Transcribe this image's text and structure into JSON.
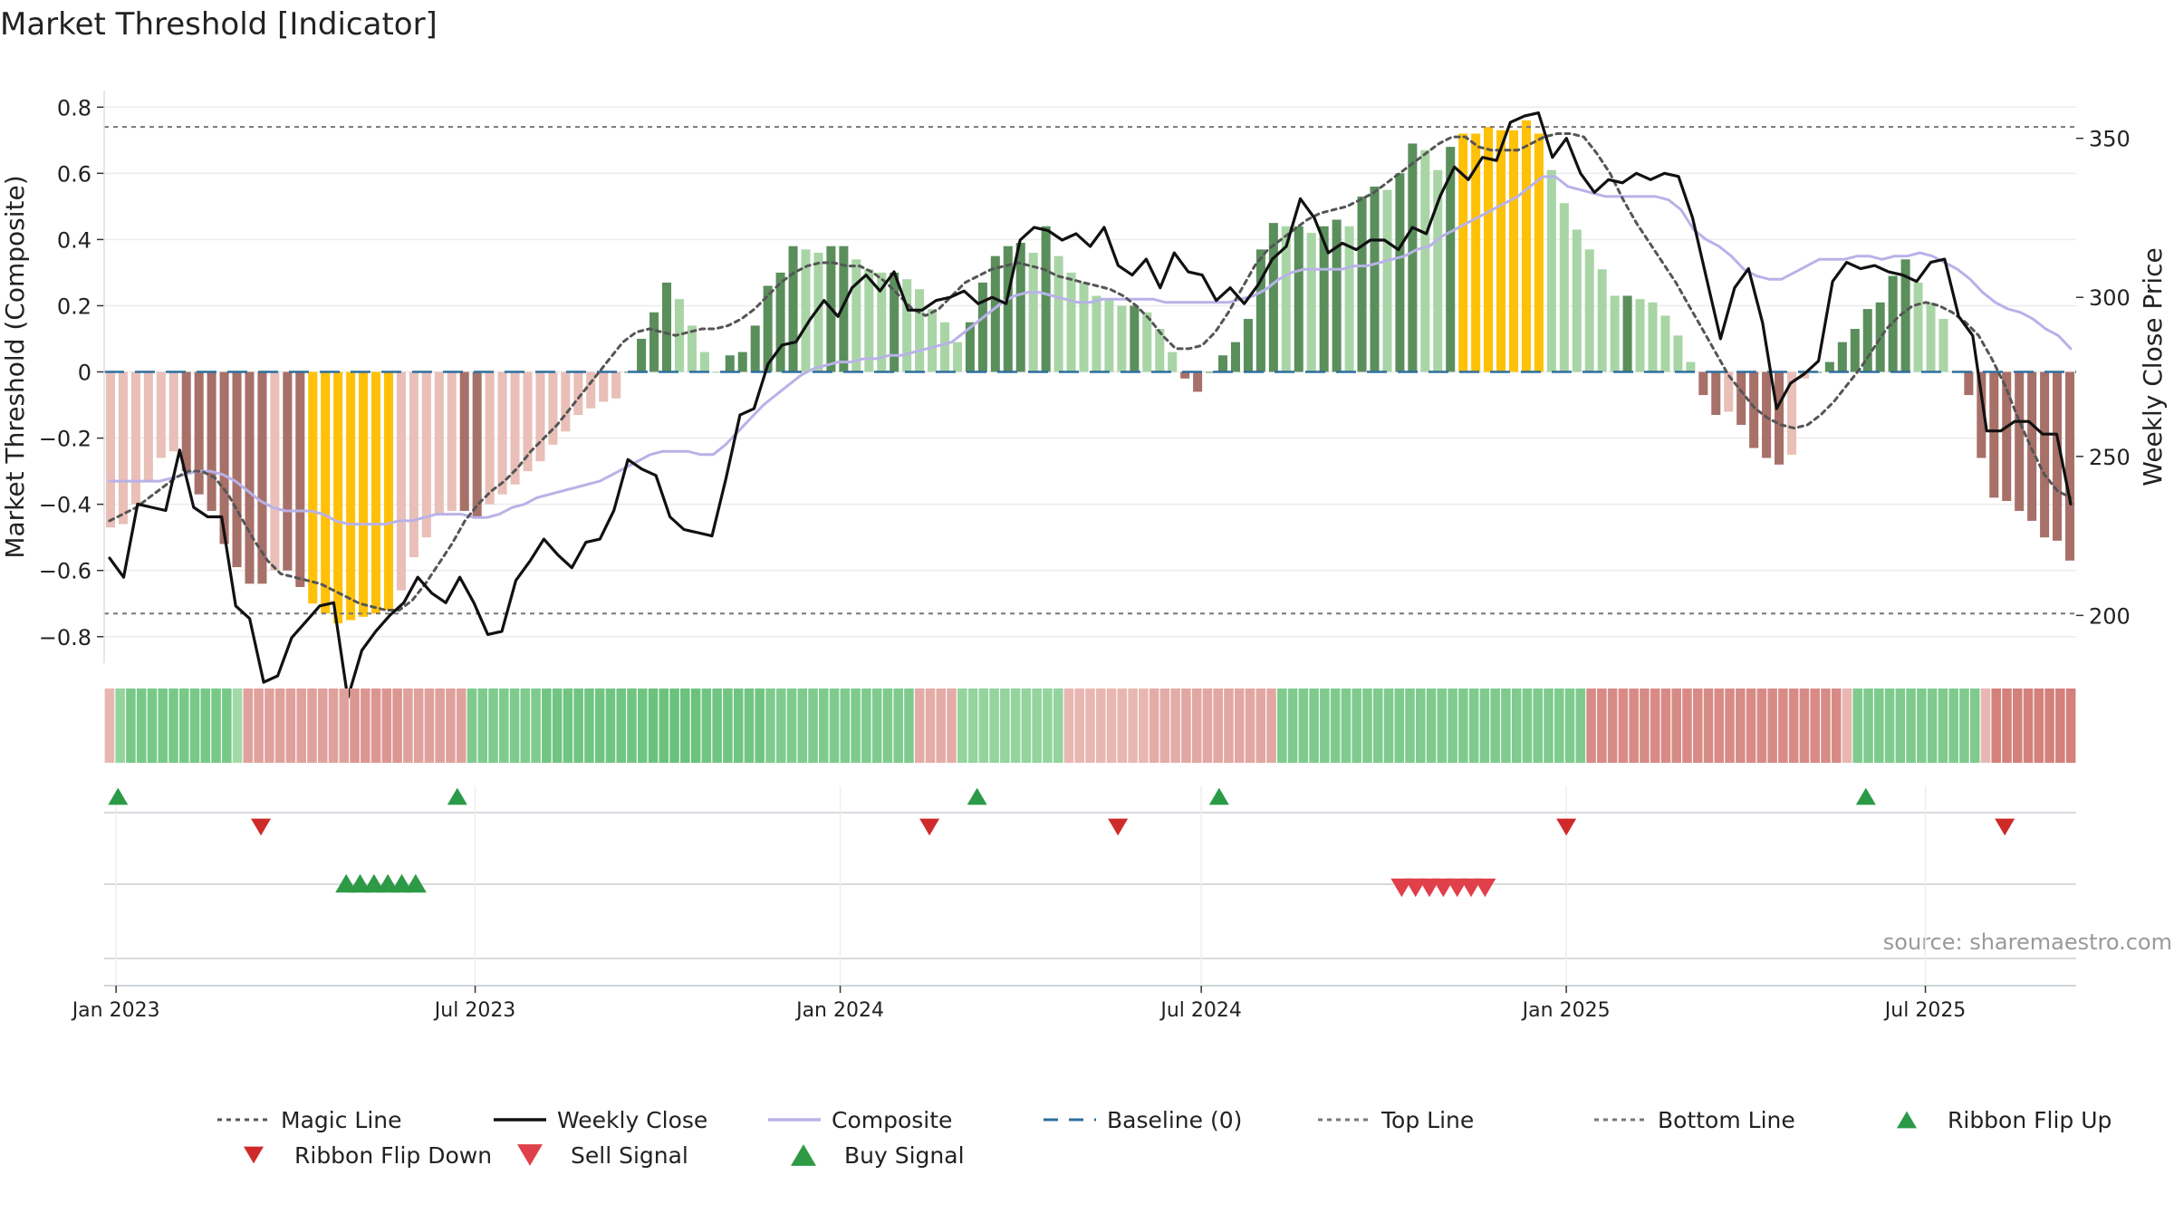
{
  "chart_data": {
    "type": "bar",
    "title": "Market Threshold [Indicator]",
    "ylabel": "Market Threshold (Composite)",
    "y2label": "Weekly Close Price",
    "source": "source: sharemaestro.com",
    "ylim": [
      -0.88,
      0.85
    ],
    "y2lim": [
      185,
      365
    ],
    "yticks": [
      0.8,
      0.6,
      0.4,
      0.2,
      0,
      -0.2,
      -0.4,
      -0.6,
      -0.8
    ],
    "ytick_labels": [
      "0.8",
      "0.6",
      "0.4",
      "0.2",
      "0",
      "−0.2",
      "−0.4",
      "−0.6",
      "−0.8"
    ],
    "y2ticks": [
      350,
      300,
      250,
      200
    ],
    "y2tick_labels": [
      "350",
      "300",
      "250",
      "200"
    ],
    "x_start": "2022-12-26",
    "x_end": "2025-09-15",
    "xticks": [
      {
        "date": "2023-01-01",
        "label": "Jan 2023"
      },
      {
        "date": "2023-07-01",
        "label": "Jul 2023"
      },
      {
        "date": "2024-01-01",
        "label": "Jan 2024"
      },
      {
        "date": "2024-07-01",
        "label": "Jul 2024"
      },
      {
        "date": "2025-01-01",
        "label": "Jan 2025"
      },
      {
        "date": "2025-07-01",
        "label": "Jul 2025"
      }
    ],
    "grid": true,
    "top_line": 0.74,
    "bottom_line": -0.73,
    "bars": [
      -0.47,
      -0.46,
      -0.4,
      -0.33,
      -0.26,
      -0.24,
      -0.3,
      -0.37,
      -0.42,
      -0.52,
      -0.59,
      -0.64,
      -0.64,
      -0.6,
      -0.6,
      -0.65,
      -0.7,
      -0.73,
      -0.76,
      -0.75,
      -0.74,
      -0.73,
      -0.72,
      -0.66,
      -0.56,
      -0.5,
      -0.43,
      -0.42,
      -0.42,
      -0.44,
      -0.4,
      -0.37,
      -0.34,
      -0.3,
      -0.27,
      -0.22,
      -0.18,
      -0.13,
      -0.11,
      -0.09,
      -0.08,
      0,
      0.1,
      0.18,
      0.27,
      0.22,
      0.14,
      0.06,
      0,
      0.05,
      0.06,
      0.14,
      0.26,
      0.3,
      0.38,
      0.37,
      0.36,
      0.38,
      0.38,
      0.34,
      0.31,
      0.3,
      0.3,
      0.28,
      0.25,
      0.19,
      0.15,
      0.09,
      0.15,
      0.27,
      0.35,
      0.38,
      0.39,
      0.36,
      0.44,
      0.35,
      0.3,
      0.27,
      0.23,
      0.22,
      0.2,
      0.2,
      0.18,
      0.13,
      0.06,
      -0.02,
      -0.06,
      0,
      0.05,
      0.09,
      0.16,
      0.37,
      0.45,
      0.44,
      0.44,
      0.42,
      0.44,
      0.46,
      0.44,
      0.53,
      0.56,
      0.55,
      0.6,
      0.69,
      0.67,
      0.61,
      0.68,
      0.72,
      0.72,
      0.74,
      0.73,
      0.73,
      0.76,
      0.72,
      0.61,
      0.51,
      0.43,
      0.37,
      0.31,
      0.23,
      0.23,
      0.22,
      0.21,
      0.17,
      0.11,
      0.03,
      -0.07,
      -0.13,
      -0.12,
      -0.16,
      -0.23,
      -0.26,
      -0.28,
      -0.25,
      -0.02,
      0,
      0.03,
      0.09,
      0.13,
      0.19,
      0.21,
      0.29,
      0.34,
      0.27,
      0.21,
      0.16,
      0,
      -0.07,
      -0.26,
      -0.38,
      -0.39,
      -0.42,
      -0.45,
      -0.5,
      -0.51,
      -0.57
    ],
    "weekly_close": [
      218,
      212,
      235,
      234,
      233,
      252,
      234,
      231,
      231,
      203,
      199,
      179,
      181,
      193,
      198,
      203,
      204,
      174,
      189,
      195,
      200,
      204,
      212,
      207,
      204,
      212,
      204,
      194,
      195,
      211,
      217,
      224,
      219,
      215,
      223,
      224,
      233,
      249,
      246,
      244,
      231,
      227,
      226,
      225,
      243,
      263,
      265,
      279,
      285,
      286,
      293,
      299,
      294,
      303,
      307,
      302,
      308,
      296,
      296,
      299,
      300,
      302,
      298,
      300,
      298,
      318,
      322,
      321,
      318,
      320,
      316,
      322,
      310,
      307,
      312,
      303,
      314,
      308,
      307,
      299,
      303,
      298,
      304,
      312,
      316,
      331,
      325,
      314,
      317,
      315,
      318,
      318,
      315,
      322,
      320,
      332,
      341,
      337,
      344,
      343,
      355,
      357,
      358,
      344,
      350,
      339,
      333,
      337,
      336,
      339,
      337,
      339,
      338,
      325,
      306,
      287,
      303,
      309,
      292,
      265,
      273,
      276,
      280,
      305,
      311,
      309,
      310,
      308,
      307,
      305,
      311,
      312,
      294,
      288,
      258,
      258,
      261,
      261,
      257,
      257,
      235
    ],
    "composite": [
      -0.33,
      -0.33,
      -0.33,
      -0.33,
      -0.33,
      -0.32,
      -0.31,
      -0.3,
      -0.3,
      -0.31,
      -0.33,
      -0.36,
      -0.39,
      -0.41,
      -0.42,
      -0.42,
      -0.42,
      -0.43,
      -0.45,
      -0.46,
      -0.46,
      -0.46,
      -0.46,
      -0.45,
      -0.45,
      -0.44,
      -0.43,
      -0.43,
      -0.43,
      -0.44,
      -0.44,
      -0.43,
      -0.41,
      -0.4,
      -0.38,
      -0.37,
      -0.36,
      -0.35,
      -0.34,
      -0.33,
      -0.31,
      -0.29,
      -0.27,
      -0.25,
      -0.24,
      -0.24,
      -0.24,
      -0.25,
      -0.25,
      -0.22,
      -0.18,
      -0.14,
      -0.1,
      -0.07,
      -0.04,
      -0.01,
      0.01,
      0.02,
      0.03,
      0.03,
      0.04,
      0.04,
      0.05,
      0.05,
      0.06,
      0.07,
      0.08,
      0.09,
      0.12,
      0.15,
      0.18,
      0.21,
      0.23,
      0.24,
      0.24,
      0.23,
      0.22,
      0.21,
      0.21,
      0.22,
      0.22,
      0.22,
      0.22,
      0.22,
      0.21,
      0.21,
      0.21,
      0.21,
      0.21,
      0.21,
      0.22,
      0.23,
      0.25,
      0.28,
      0.3,
      0.31,
      0.31,
      0.31,
      0.31,
      0.32,
      0.32,
      0.33,
      0.34,
      0.35,
      0.37,
      0.38,
      0.41,
      0.43,
      0.45,
      0.47,
      0.49,
      0.51,
      0.53,
      0.56,
      0.59,
      0.59,
      0.56,
      0.55,
      0.54,
      0.53,
      0.53,
      0.53,
      0.53,
      0.53,
      0.52,
      0.49,
      0.43,
      0.4,
      0.38,
      0.35,
      0.31,
      0.29,
      0.28,
      0.28,
      0.3,
      0.32,
      0.34,
      0.34,
      0.34,
      0.35,
      0.35,
      0.34,
      0.35,
      0.35,
      0.36,
      0.35,
      0.33,
      0.31,
      0.28,
      0.24,
      0.21,
      0.19,
      0.18,
      0.16,
      0.13,
      0.11,
      0.07
    ],
    "magic_line": [
      -0.45,
      -0.43,
      -0.41,
      -0.38,
      -0.35,
      -0.32,
      -0.3,
      -0.3,
      -0.32,
      -0.37,
      -0.44,
      -0.51,
      -0.57,
      -0.61,
      -0.62,
      -0.63,
      -0.64,
      -0.66,
      -0.68,
      -0.7,
      -0.71,
      -0.72,
      -0.72,
      -0.69,
      -0.64,
      -0.58,
      -0.52,
      -0.45,
      -0.4,
      -0.36,
      -0.33,
      -0.29,
      -0.24,
      -0.2,
      -0.16,
      -0.11,
      -0.06,
      -0.01,
      0.04,
      0.09,
      0.12,
      0.13,
      0.12,
      0.11,
      0.12,
      0.13,
      0.13,
      0.14,
      0.16,
      0.19,
      0.23,
      0.27,
      0.3,
      0.32,
      0.33,
      0.33,
      0.32,
      0.32,
      0.3,
      0.27,
      0.23,
      0.19,
      0.17,
      0.19,
      0.23,
      0.27,
      0.29,
      0.31,
      0.32,
      0.33,
      0.32,
      0.31,
      0.29,
      0.28,
      0.27,
      0.26,
      0.25,
      0.23,
      0.2,
      0.16,
      0.11,
      0.07,
      0.07,
      0.08,
      0.12,
      0.18,
      0.25,
      0.32,
      0.37,
      0.4,
      0.43,
      0.46,
      0.48,
      0.49,
      0.5,
      0.52,
      0.54,
      0.57,
      0.6,
      0.63,
      0.66,
      0.69,
      0.71,
      0.71,
      0.68,
      0.67,
      0.67,
      0.67,
      0.69,
      0.71,
      0.72,
      0.72,
      0.71,
      0.66,
      0.6,
      0.52,
      0.45,
      0.39,
      0.33,
      0.27,
      0.2,
      0.13,
      0.06,
      -0.01,
      -0.06,
      -0.11,
      -0.14,
      -0.16,
      -0.17,
      -0.16,
      -0.13,
      -0.09,
      -0.04,
      0.01,
      0.07,
      0.13,
      0.17,
      0.2,
      0.21,
      0.2,
      0.18,
      0.15,
      0.11,
      0.04,
      -0.04,
      -0.14,
      -0.23,
      -0.31,
      -0.36,
      -0.38
    ],
    "ribbon": [
      -0.2,
      0.3,
      0.5,
      0.5,
      0.5,
      0.5,
      0.5,
      0.5,
      0.5,
      0.5,
      0.5,
      0.5,
      0.2,
      -0.4,
      -0.4,
      -0.4,
      -0.4,
      -0.4,
      -0.4,
      -0.4,
      -0.4,
      -0.4,
      -0.4,
      -0.5,
      -0.5,
      -0.5,
      -0.5,
      -0.5,
      -0.4,
      -0.4,
      -0.4,
      -0.4,
      -0.4,
      -0.4,
      0.45,
      0.45,
      0.45,
      0.45,
      0.45,
      0.45,
      0.45,
      0.55,
      0.55,
      0.55,
      0.55,
      0.55,
      0.55,
      0.55,
      0.55,
      0.55,
      0.55,
      0.6,
      0.6,
      0.6,
      0.6,
      0.6,
      0.55,
      0.55,
      0.55,
      0.55,
      0.55,
      0.55,
      0.45,
      0.45,
      0.45,
      0.45,
      0.45,
      0.45,
      0.45,
      0.45,
      0.45,
      0.45,
      0.45,
      0.45,
      0.45,
      0.45,
      -0.3,
      -0.3,
      -0.3,
      -0.3,
      0.3,
      0.3,
      0.3,
      0.3,
      0.3,
      0.3,
      0.3,
      0.3,
      0.3,
      0.3,
      -0.2,
      -0.2,
      -0.2,
      -0.2,
      -0.2,
      -0.2,
      -0.2,
      -0.2,
      -0.3,
      -0.3,
      -0.3,
      -0.35,
      -0.35,
      -0.35,
      -0.35,
      -0.35,
      -0.35,
      -0.35,
      -0.35,
      -0.35,
      0.45,
      0.45,
      0.45,
      0.45,
      0.45,
      0.45,
      0.45,
      0.45,
      0.45,
      0.45,
      0.45,
      0.45,
      0.45,
      0.45,
      0.45,
      0.45,
      0.45,
      0.45,
      0.45,
      0.45,
      0.45,
      0.45,
      0.45,
      0.45,
      0.45,
      0.45,
      0.45,
      0.45,
      0.45,
      -0.6,
      -0.6,
      -0.6,
      -0.6,
      -0.6,
      -0.6,
      -0.6,
      -0.6,
      -0.6,
      -0.6,
      -0.6,
      -0.6,
      -0.6,
      -0.6,
      -0.6,
      -0.6,
      -0.6,
      -0.6,
      -0.6,
      -0.6,
      -0.6,
      -0.6,
      -0.6,
      -0.6,
      -0.2,
      0.45,
      0.45,
      0.45,
      0.45,
      0.45,
      0.45,
      0.45,
      0.45,
      0.45,
      0.45,
      0.45,
      0.45,
      -0.2,
      -0.7,
      -0.7,
      -0.7,
      -0.7,
      -0.7,
      -0.7,
      -0.7,
      -0.7
    ],
    "ribbon_flip_up": [
      "2023-01-02",
      "2023-06-22",
      "2024-03-10",
      "2024-07-10",
      "2025-06-01"
    ],
    "ribbon_flip_down": [
      "2023-03-15",
      "2024-02-15",
      "2024-05-20",
      "2025-01-01",
      "2025-08-10"
    ],
    "buy_signals": [
      "2023-04-27",
      "2023-05-04",
      "2023-05-11",
      "2023-05-18",
      "2023-05-25",
      "2023-06-01"
    ],
    "sell_signals": [
      "2024-10-10",
      "2024-10-17",
      "2024-10-24",
      "2024-10-31",
      "2024-11-07",
      "2024-11-14",
      "2024-11-21"
    ],
    "legend": [
      {
        "label": "Magic Line",
        "kind": "dotted",
        "color": "#555555"
      },
      {
        "label": "Weekly Close",
        "kind": "solid",
        "color": "#111111"
      },
      {
        "label": "Composite",
        "kind": "solid",
        "color": "#b9b2e8"
      },
      {
        "label": "Baseline (0)",
        "kind": "dashed",
        "color": "#2e6f9e"
      },
      {
        "label": "Top Line",
        "kind": "dotted",
        "color": "#777777"
      },
      {
        "label": "Bottom Line",
        "kind": "dotted",
        "color": "#777777"
      },
      {
        "label": "Ribbon Flip Up",
        "kind": "up",
        "color": "#2a9a47"
      },
      {
        "label": "Ribbon Flip Down",
        "kind": "down",
        "color": "#cf2a2a"
      },
      {
        "label": "Sell Signal",
        "kind": "down",
        "color": "#e0404a"
      },
      {
        "label": "Buy Signal",
        "kind": "up",
        "color": "#2e9a45"
      }
    ],
    "legend_placement": "bottom",
    "colors": {
      "extreme": "#ffc107",
      "pos_strong": "#5a8f5c",
      "pos_weak": "#a9d5a6",
      "neg_strong": "#a77068",
      "neg_weak": "#e9bfb8",
      "weekly_close": "#111111",
      "composite": "#b9b2e8",
      "magic_line": "#555555",
      "baseline": "#2e6f9e"
    }
  }
}
